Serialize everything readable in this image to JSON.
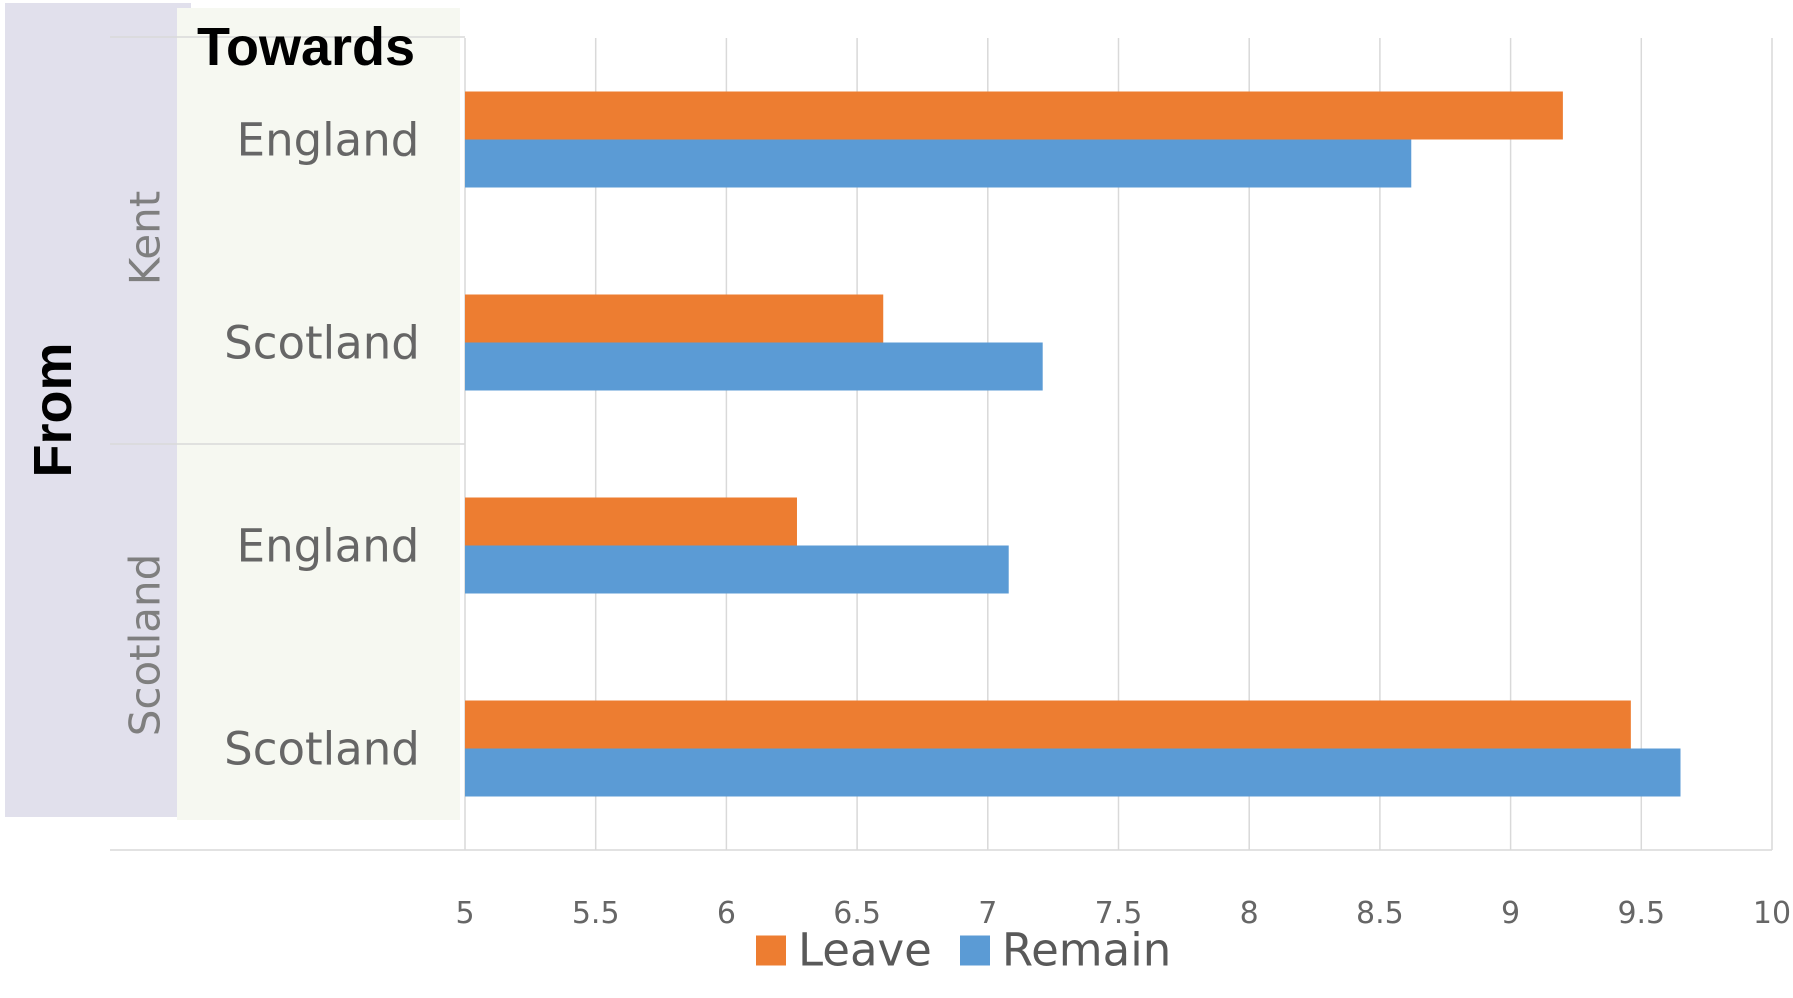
{
  "chart_data": {
    "type": "bar",
    "orientation": "horizontal",
    "title": "",
    "axis_titles": {
      "from": "From",
      "towards": "Towards"
    },
    "groups": [
      {
        "from": "Kent",
        "categories": [
          "England",
          "Scotland"
        ]
      },
      {
        "from": "Scotland",
        "categories": [
          "England",
          "Scotland"
        ]
      }
    ],
    "categories": [
      "Kent – England",
      "Kent – Scotland",
      "Scotland – England",
      "Scotland – Scotland"
    ],
    "series": [
      {
        "name": "Leave",
        "color": "#ed7d31",
        "values": [
          9.2,
          6.6,
          6.27,
          9.46
        ]
      },
      {
        "name": "Remain",
        "color": "#5b9bd5",
        "values": [
          8.62,
          7.21,
          7.08,
          9.65
        ]
      }
    ],
    "xlim": [
      5,
      10
    ],
    "ticks": [
      "5",
      "5.5",
      "6",
      "6.5",
      "7",
      "7.5",
      "8",
      "8.5",
      "9",
      "9.5",
      "10"
    ],
    "grid": true,
    "legend": "bottom"
  }
}
